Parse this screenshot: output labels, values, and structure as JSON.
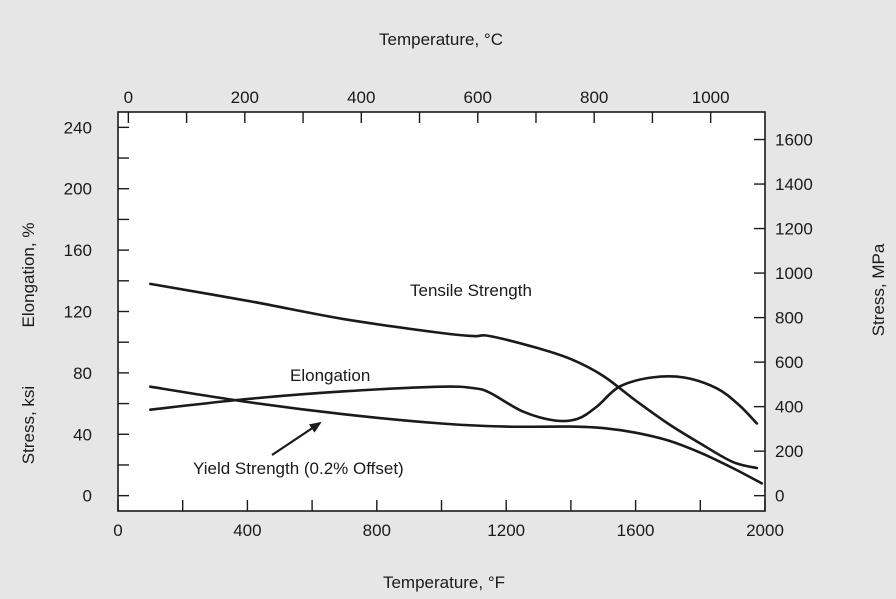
{
  "chart_data": {
    "type": "line",
    "title": "",
    "x_bottom": {
      "label": "Temperature, °F",
      "range": [
        0,
        2000
      ],
      "ticks": [
        0,
        400,
        800,
        1200,
        1600,
        2000
      ],
      "minor_step": 200
    },
    "x_top": {
      "label": "Temperature, °C",
      "range": [
        -17.8,
        1093.3
      ],
      "ticks": [
        0,
        200,
        400,
        600,
        800,
        1000
      ],
      "minor_step": 100
    },
    "y_left": {
      "label_upper": "Elongation, %",
      "label_lower": "Stress, ksi",
      "range": [
        -10,
        250
      ],
      "ticks": [
        0,
        40,
        80,
        120,
        160,
        200,
        240
      ],
      "minor_step": 20
    },
    "y_right": {
      "label": "Stress, MPa",
      "range": [
        -68.9,
        1723.7
      ],
      "ticks": [
        0,
        200,
        400,
        600,
        800,
        1000,
        1200,
        1400,
        1600
      ]
    },
    "grid": false,
    "series": [
      {
        "name": "Tensile Strength",
        "x": [
          100,
          400,
          700,
          1000,
          1100,
          1150,
          1300,
          1400,
          1500,
          1600,
          1700,
          1800,
          1900,
          1975
        ],
        "y": [
          138,
          127,
          115,
          106,
          104,
          104,
          96,
          89,
          78,
          62,
          47,
          34,
          22,
          18
        ]
      },
      {
        "name": "Elongation",
        "x": [
          100,
          400,
          700,
          1000,
          1100,
          1150,
          1250,
          1350,
          1420,
          1480,
          1550,
          1650,
          1750,
          1850,
          1920,
          1975
        ],
        "y": [
          56,
          63,
          68,
          71,
          70,
          67,
          55,
          49,
          50,
          58,
          71,
          77,
          77,
          70,
          59,
          47
        ]
      },
      {
        "name": "Yield Strength (0.2% Offset)",
        "x": [
          100,
          400,
          700,
          1000,
          1200,
          1400,
          1500,
          1600,
          1700,
          1800,
          1900,
          1990
        ],
        "y": [
          71,
          61,
          53,
          47,
          45,
          45,
          44,
          41,
          36,
          28,
          18,
          8
        ]
      }
    ],
    "annotations": [
      {
        "text": "Tensile Strength",
        "series": "Tensile Strength"
      },
      {
        "text": "Elongation",
        "series": "Elongation"
      },
      {
        "text": "Yield Strength (0.2% Offset)",
        "series": "Yield Strength (0.2% Offset)",
        "arrow": true
      }
    ]
  }
}
